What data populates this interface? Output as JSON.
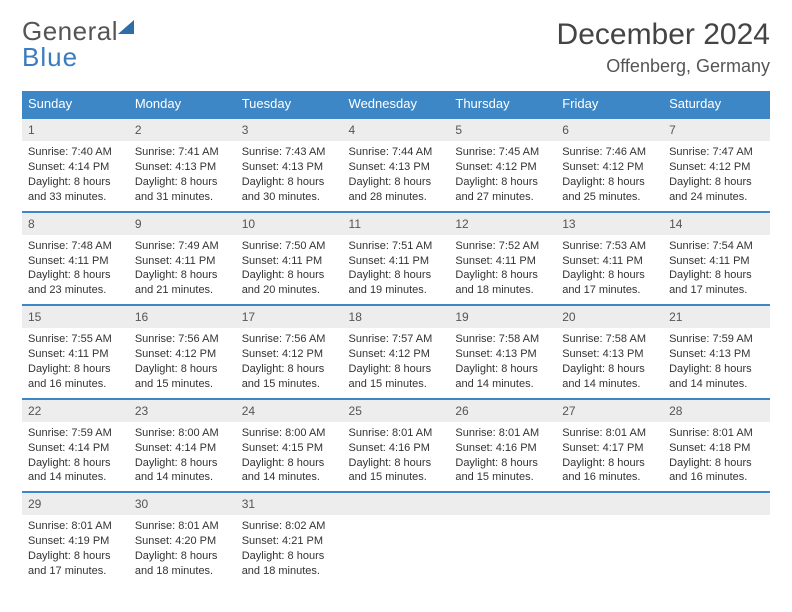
{
  "brand": {
    "line1": "General",
    "line2": "Blue"
  },
  "title": {
    "month": "December 2024",
    "location": "Offenberg, Germany"
  },
  "colors": {
    "header_bg": "#3d87c7",
    "header_text": "#ffffff",
    "daynum_bg": "#ededed",
    "row_divider": "#3d87c7",
    "body_text": "#333333",
    "brand_gray": "#555555",
    "brand_blue": "#3a7cbf",
    "page_bg": "#ffffff"
  },
  "typography": {
    "month_fontsize": 30,
    "location_fontsize": 18,
    "header_fontsize": 13,
    "cell_fontsize": 11,
    "daynum_fontsize": 12
  },
  "weekdays": [
    "Sunday",
    "Monday",
    "Tuesday",
    "Wednesday",
    "Thursday",
    "Friday",
    "Saturday"
  ],
  "weeks": [
    [
      {
        "day": "1",
        "sunrise": "Sunrise: 7:40 AM",
        "sunset": "Sunset: 4:14 PM",
        "daylight": "Daylight: 8 hours and 33 minutes."
      },
      {
        "day": "2",
        "sunrise": "Sunrise: 7:41 AM",
        "sunset": "Sunset: 4:13 PM",
        "daylight": "Daylight: 8 hours and 31 minutes."
      },
      {
        "day": "3",
        "sunrise": "Sunrise: 7:43 AM",
        "sunset": "Sunset: 4:13 PM",
        "daylight": "Daylight: 8 hours and 30 minutes."
      },
      {
        "day": "4",
        "sunrise": "Sunrise: 7:44 AM",
        "sunset": "Sunset: 4:13 PM",
        "daylight": "Daylight: 8 hours and 28 minutes."
      },
      {
        "day": "5",
        "sunrise": "Sunrise: 7:45 AM",
        "sunset": "Sunset: 4:12 PM",
        "daylight": "Daylight: 8 hours and 27 minutes."
      },
      {
        "day": "6",
        "sunrise": "Sunrise: 7:46 AM",
        "sunset": "Sunset: 4:12 PM",
        "daylight": "Daylight: 8 hours and 25 minutes."
      },
      {
        "day": "7",
        "sunrise": "Sunrise: 7:47 AM",
        "sunset": "Sunset: 4:12 PM",
        "daylight": "Daylight: 8 hours and 24 minutes."
      }
    ],
    [
      {
        "day": "8",
        "sunrise": "Sunrise: 7:48 AM",
        "sunset": "Sunset: 4:11 PM",
        "daylight": "Daylight: 8 hours and 23 minutes."
      },
      {
        "day": "9",
        "sunrise": "Sunrise: 7:49 AM",
        "sunset": "Sunset: 4:11 PM",
        "daylight": "Daylight: 8 hours and 21 minutes."
      },
      {
        "day": "10",
        "sunrise": "Sunrise: 7:50 AM",
        "sunset": "Sunset: 4:11 PM",
        "daylight": "Daylight: 8 hours and 20 minutes."
      },
      {
        "day": "11",
        "sunrise": "Sunrise: 7:51 AM",
        "sunset": "Sunset: 4:11 PM",
        "daylight": "Daylight: 8 hours and 19 minutes."
      },
      {
        "day": "12",
        "sunrise": "Sunrise: 7:52 AM",
        "sunset": "Sunset: 4:11 PM",
        "daylight": "Daylight: 8 hours and 18 minutes."
      },
      {
        "day": "13",
        "sunrise": "Sunrise: 7:53 AM",
        "sunset": "Sunset: 4:11 PM",
        "daylight": "Daylight: 8 hours and 17 minutes."
      },
      {
        "day": "14",
        "sunrise": "Sunrise: 7:54 AM",
        "sunset": "Sunset: 4:11 PM",
        "daylight": "Daylight: 8 hours and 17 minutes."
      }
    ],
    [
      {
        "day": "15",
        "sunrise": "Sunrise: 7:55 AM",
        "sunset": "Sunset: 4:11 PM",
        "daylight": "Daylight: 8 hours and 16 minutes."
      },
      {
        "day": "16",
        "sunrise": "Sunrise: 7:56 AM",
        "sunset": "Sunset: 4:12 PM",
        "daylight": "Daylight: 8 hours and 15 minutes."
      },
      {
        "day": "17",
        "sunrise": "Sunrise: 7:56 AM",
        "sunset": "Sunset: 4:12 PM",
        "daylight": "Daylight: 8 hours and 15 minutes."
      },
      {
        "day": "18",
        "sunrise": "Sunrise: 7:57 AM",
        "sunset": "Sunset: 4:12 PM",
        "daylight": "Daylight: 8 hours and 15 minutes."
      },
      {
        "day": "19",
        "sunrise": "Sunrise: 7:58 AM",
        "sunset": "Sunset: 4:13 PM",
        "daylight": "Daylight: 8 hours and 14 minutes."
      },
      {
        "day": "20",
        "sunrise": "Sunrise: 7:58 AM",
        "sunset": "Sunset: 4:13 PM",
        "daylight": "Daylight: 8 hours and 14 minutes."
      },
      {
        "day": "21",
        "sunrise": "Sunrise: 7:59 AM",
        "sunset": "Sunset: 4:13 PM",
        "daylight": "Daylight: 8 hours and 14 minutes."
      }
    ],
    [
      {
        "day": "22",
        "sunrise": "Sunrise: 7:59 AM",
        "sunset": "Sunset: 4:14 PM",
        "daylight": "Daylight: 8 hours and 14 minutes."
      },
      {
        "day": "23",
        "sunrise": "Sunrise: 8:00 AM",
        "sunset": "Sunset: 4:14 PM",
        "daylight": "Daylight: 8 hours and 14 minutes."
      },
      {
        "day": "24",
        "sunrise": "Sunrise: 8:00 AM",
        "sunset": "Sunset: 4:15 PM",
        "daylight": "Daylight: 8 hours and 14 minutes."
      },
      {
        "day": "25",
        "sunrise": "Sunrise: 8:01 AM",
        "sunset": "Sunset: 4:16 PM",
        "daylight": "Daylight: 8 hours and 15 minutes."
      },
      {
        "day": "26",
        "sunrise": "Sunrise: 8:01 AM",
        "sunset": "Sunset: 4:16 PM",
        "daylight": "Daylight: 8 hours and 15 minutes."
      },
      {
        "day": "27",
        "sunrise": "Sunrise: 8:01 AM",
        "sunset": "Sunset: 4:17 PM",
        "daylight": "Daylight: 8 hours and 16 minutes."
      },
      {
        "day": "28",
        "sunrise": "Sunrise: 8:01 AM",
        "sunset": "Sunset: 4:18 PM",
        "daylight": "Daylight: 8 hours and 16 minutes."
      }
    ],
    [
      {
        "day": "29",
        "sunrise": "Sunrise: 8:01 AM",
        "sunset": "Sunset: 4:19 PM",
        "daylight": "Daylight: 8 hours and 17 minutes."
      },
      {
        "day": "30",
        "sunrise": "Sunrise: 8:01 AM",
        "sunset": "Sunset: 4:20 PM",
        "daylight": "Daylight: 8 hours and 18 minutes."
      },
      {
        "day": "31",
        "sunrise": "Sunrise: 8:02 AM",
        "sunset": "Sunset: 4:21 PM",
        "daylight": "Daylight: 8 hours and 18 minutes."
      },
      null,
      null,
      null,
      null
    ]
  ]
}
